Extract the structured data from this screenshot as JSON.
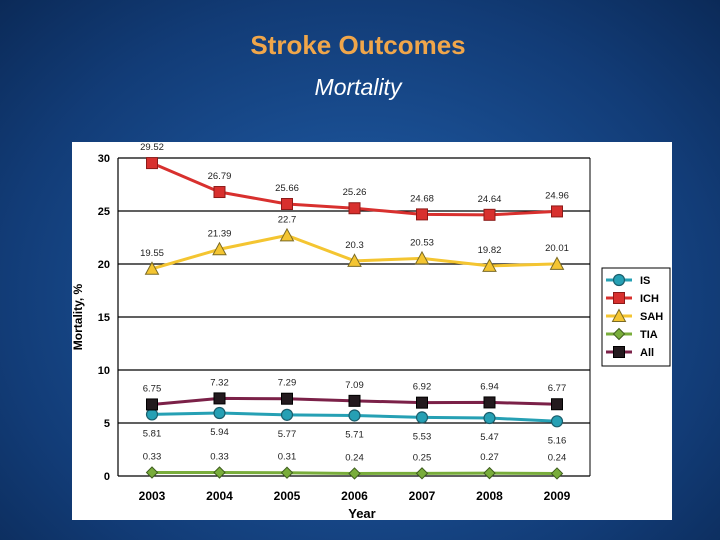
{
  "slide": {
    "title": "Stroke Outcomes",
    "subtitle": "Mortality"
  },
  "colors": {
    "IS": "#26a0b4",
    "ICH": "#d8302e",
    "SAH": "#f4c531",
    "TIA": "#79ad3b",
    "All": "#7b2148"
  },
  "chart_data": {
    "type": "line",
    "title": "",
    "xlabel": "Year",
    "ylabel": "Mortality, %",
    "ylim": [
      0,
      30
    ],
    "yticks": [
      0,
      5,
      10,
      15,
      20,
      25,
      30
    ],
    "grid": "horizontal",
    "legend_position": "right",
    "x": [
      "2003",
      "2004",
      "2005",
      "2006",
      "2007",
      "2008",
      "2009"
    ],
    "series": [
      {
        "name": "IS",
        "marker": "circle",
        "values": [
          5.81,
          5.94,
          5.77,
          5.71,
          5.53,
          5.47,
          5.16
        ],
        "labels": [
          "5.81",
          "5.94",
          "5.77",
          "5.71",
          "5.53",
          "5.47",
          "5.16"
        ],
        "label_position": "below"
      },
      {
        "name": "ICH",
        "marker": "square",
        "values": [
          29.52,
          26.79,
          25.66,
          25.26,
          24.68,
          24.64,
          24.96
        ],
        "labels": [
          "29.52",
          "26.79",
          "25.66",
          "25.26",
          "24.68",
          "24.64",
          "24.96"
        ],
        "label_position": "above"
      },
      {
        "name": "SAH",
        "marker": "triangle",
        "values": [
          19.55,
          21.39,
          22.7,
          20.3,
          20.53,
          19.82,
          20.01
        ],
        "labels": [
          "19.55",
          "21.39",
          "22.7",
          "20.3",
          "20.53",
          "19.82",
          "20.01"
        ],
        "label_position": "above"
      },
      {
        "name": "TIA",
        "marker": "diamond",
        "values": [
          0.33,
          0.33,
          0.31,
          0.24,
          0.25,
          0.27,
          0.24
        ],
        "labels": [
          "0.33",
          "0.33",
          "0.31",
          "0.24",
          "0.25",
          "0.27",
          "0.24"
        ],
        "label_position": "above"
      },
      {
        "name": "All",
        "marker": "square-dark",
        "values": [
          6.75,
          7.32,
          7.29,
          7.09,
          6.92,
          6.94,
          6.77
        ],
        "labels": [
          "6.75",
          "7.32",
          "7.29",
          "7.09",
          "6.92",
          "6.94",
          "6.77"
        ],
        "label_position": "above"
      }
    ]
  }
}
